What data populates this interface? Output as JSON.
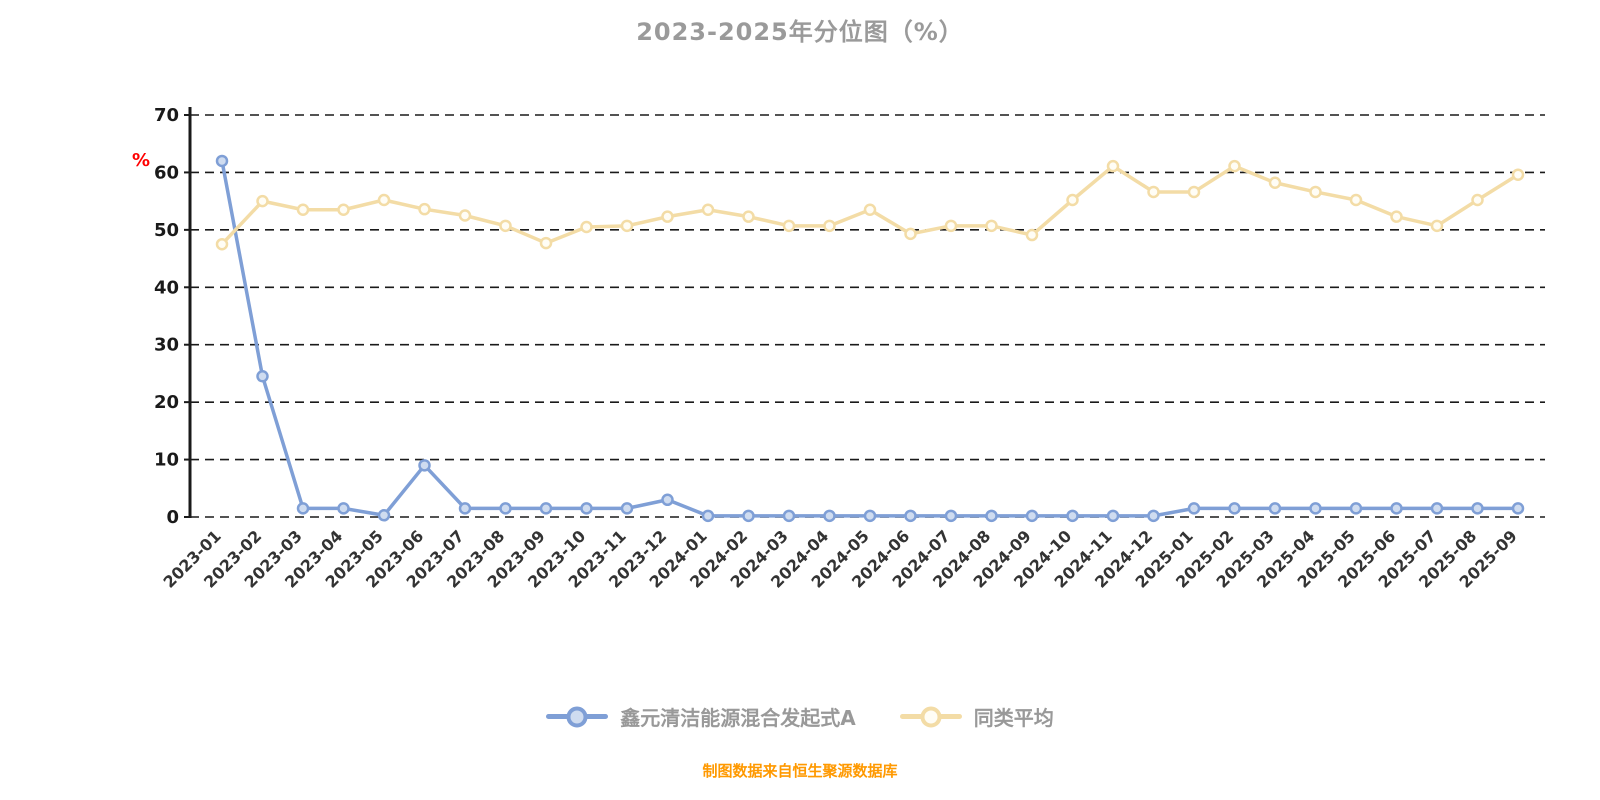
{
  "page": {
    "source_note": "制图数据来自恒生聚源数据库"
  },
  "chart_data": {
    "type": "line",
    "title": "2023-2025年分位图（%）",
    "xlabel": "",
    "ylabel": "%",
    "ylabel_color": "#ff0000",
    "ylim": [
      0,
      70
    ],
    "yticks": [
      0,
      10,
      20,
      30,
      40,
      50,
      60,
      70
    ],
    "grid": "horizontal-dashed-black",
    "legend_position": "bottom",
    "categories": [
      "2023-01",
      "2023-02",
      "2023-03",
      "2023-04",
      "2023-05",
      "2023-06",
      "2023-07",
      "2023-08",
      "2023-09",
      "2023-10",
      "2023-11",
      "2023-12",
      "2024-01",
      "2024-02",
      "2024-03",
      "2024-04",
      "2024-05",
      "2024-06",
      "2024-07",
      "2024-08",
      "2024-09",
      "2024-10",
      "2024-11",
      "2024-12",
      "2025-01",
      "2025-02",
      "2025-03",
      "2025-04",
      "2025-05",
      "2025-06",
      "2025-07",
      "2025-08",
      "2025-09"
    ],
    "series": [
      {
        "name": "鑫元清洁能源混合发起式A",
        "color": "#7f9fd6",
        "marker_fill": "#cfdcf0",
        "values": [
          62,
          24.5,
          1.5,
          1.5,
          0.3,
          9,
          1.5,
          1.5,
          1.5,
          1.5,
          1.5,
          3,
          0.2,
          0.2,
          0.2,
          0.2,
          0.2,
          0.2,
          0.2,
          0.2,
          0.2,
          0.2,
          0.2,
          0.2,
          1.5,
          1.5,
          1.5,
          1.5,
          1.5,
          1.5,
          1.5,
          1.5,
          1.5
        ]
      },
      {
        "name": "同类平均",
        "color": "#f3dca6",
        "marker_fill": "#fffdf5",
        "values": [
          47.5,
          55,
          53.5,
          53.5,
          55.2,
          53.6,
          52.5,
          50.7,
          47.7,
          50.5,
          50.7,
          52.3,
          53.5,
          52.3,
          50.7,
          50.7,
          53.5,
          49.3,
          50.7,
          50.7,
          49.1,
          55.2,
          61.1,
          56.6,
          56.6,
          61.1,
          58.2,
          56.6,
          55.2,
          52.3,
          50.7,
          55.2,
          59.6
        ]
      }
    ]
  }
}
